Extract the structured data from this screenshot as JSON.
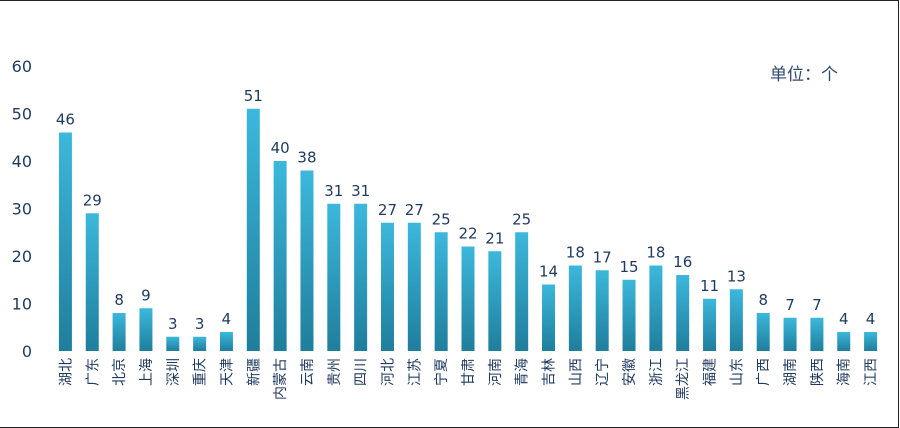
{
  "unit_label": "单位：个",
  "chart_data": {
    "type": "bar",
    "categories": [
      "湖北",
      "广东",
      "北京",
      "上海",
      "深圳",
      "重庆",
      "天津",
      "新疆",
      "内蒙古",
      "云南",
      "贵州",
      "四川",
      "河北",
      "江苏",
      "宁夏",
      "甘肃",
      "河南",
      "青海",
      "吉林",
      "山西",
      "辽宁",
      "安徽",
      "浙江",
      "黑龙江",
      "福建",
      "山东",
      "广西",
      "湖南",
      "陕西",
      "海南",
      "江西"
    ],
    "values": [
      46,
      29,
      8,
      9,
      3,
      3,
      4,
      51,
      40,
      38,
      31,
      31,
      27,
      27,
      25,
      22,
      21,
      25,
      14,
      18,
      17,
      15,
      18,
      16,
      11,
      13,
      8,
      7,
      7,
      4,
      4
    ],
    "ylim": [
      0,
      60
    ],
    "yticks": [
      0,
      10,
      20,
      30,
      40,
      50,
      60
    ],
    "grid": false,
    "bar_color_top": "#3cb8dc",
    "bar_color_bottom": "#1f7e9c",
    "label_color": "#1f3a5f"
  }
}
